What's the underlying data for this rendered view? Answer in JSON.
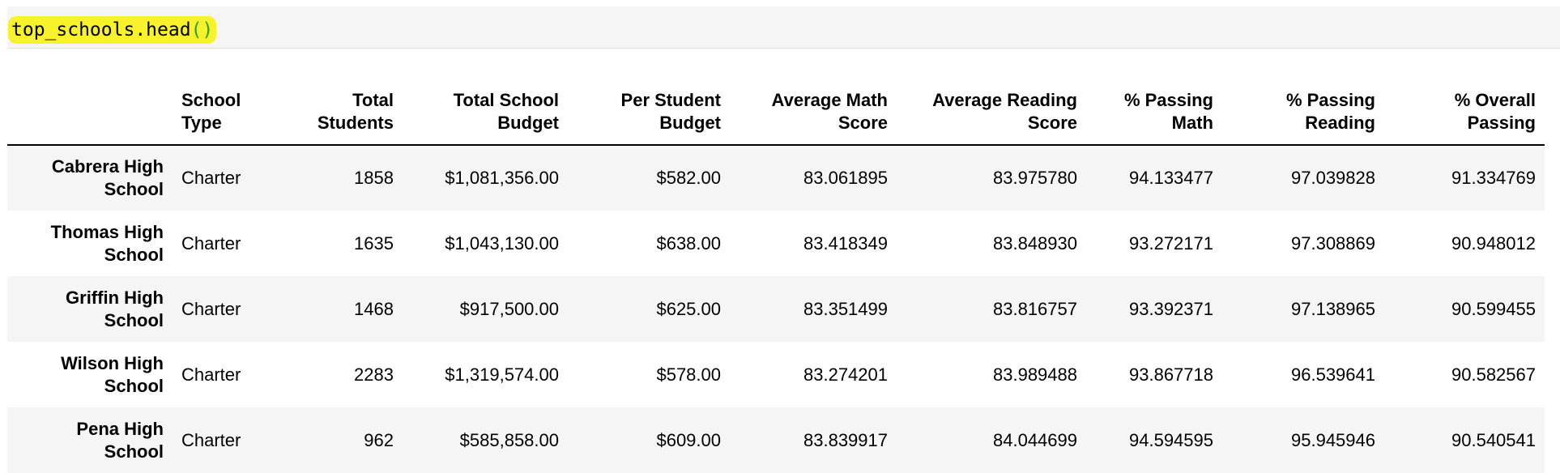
{
  "code_cell": {
    "text": "top_schools.head",
    "parens": "()"
  },
  "table": {
    "columns": [
      "",
      "School Type",
      "Total Students",
      "Total School Budget",
      "Per Student Budget",
      "Average Math Score",
      "Average Reading Score",
      "% Passing Math",
      "% Passing Reading",
      "% Overall Passing"
    ],
    "rows": [
      {
        "school": "Cabrera High School",
        "type": "Charter",
        "students": "1858",
        "budget": "$1,081,356.00",
        "per_student": "$582.00",
        "math": "83.061895",
        "reading": "83.975780",
        "pass_math": "94.133477",
        "pass_reading": "97.039828",
        "overall": "91.334769"
      },
      {
        "school": "Thomas High School",
        "type": "Charter",
        "students": "1635",
        "budget": "$1,043,130.00",
        "per_student": "$638.00",
        "math": "83.418349",
        "reading": "83.848930",
        "pass_math": "93.272171",
        "pass_reading": "97.308869",
        "overall": "90.948012"
      },
      {
        "school": "Griffin High School",
        "type": "Charter",
        "students": "1468",
        "budget": "$917,500.00",
        "per_student": "$625.00",
        "math": "83.351499",
        "reading": "83.816757",
        "pass_math": "93.392371",
        "pass_reading": "97.138965",
        "overall": "90.599455"
      },
      {
        "school": "Wilson High School",
        "type": "Charter",
        "students": "2283",
        "budget": "$1,319,574.00",
        "per_student": "$578.00",
        "math": "83.274201",
        "reading": "83.989488",
        "pass_math": "93.867718",
        "pass_reading": "96.539641",
        "overall": "90.582567"
      },
      {
        "school": "Pena High School",
        "type": "Charter",
        "students": "962",
        "budget": "$585,858.00",
        "per_student": "$609.00",
        "math": "83.839917",
        "reading": "84.044699",
        "pass_math": "94.594595",
        "pass_reading": "95.945946",
        "overall": "90.540541"
      }
    ]
  },
  "colors": {
    "highlight": "#f7f22a",
    "stripe": "#f5f5f5"
  }
}
